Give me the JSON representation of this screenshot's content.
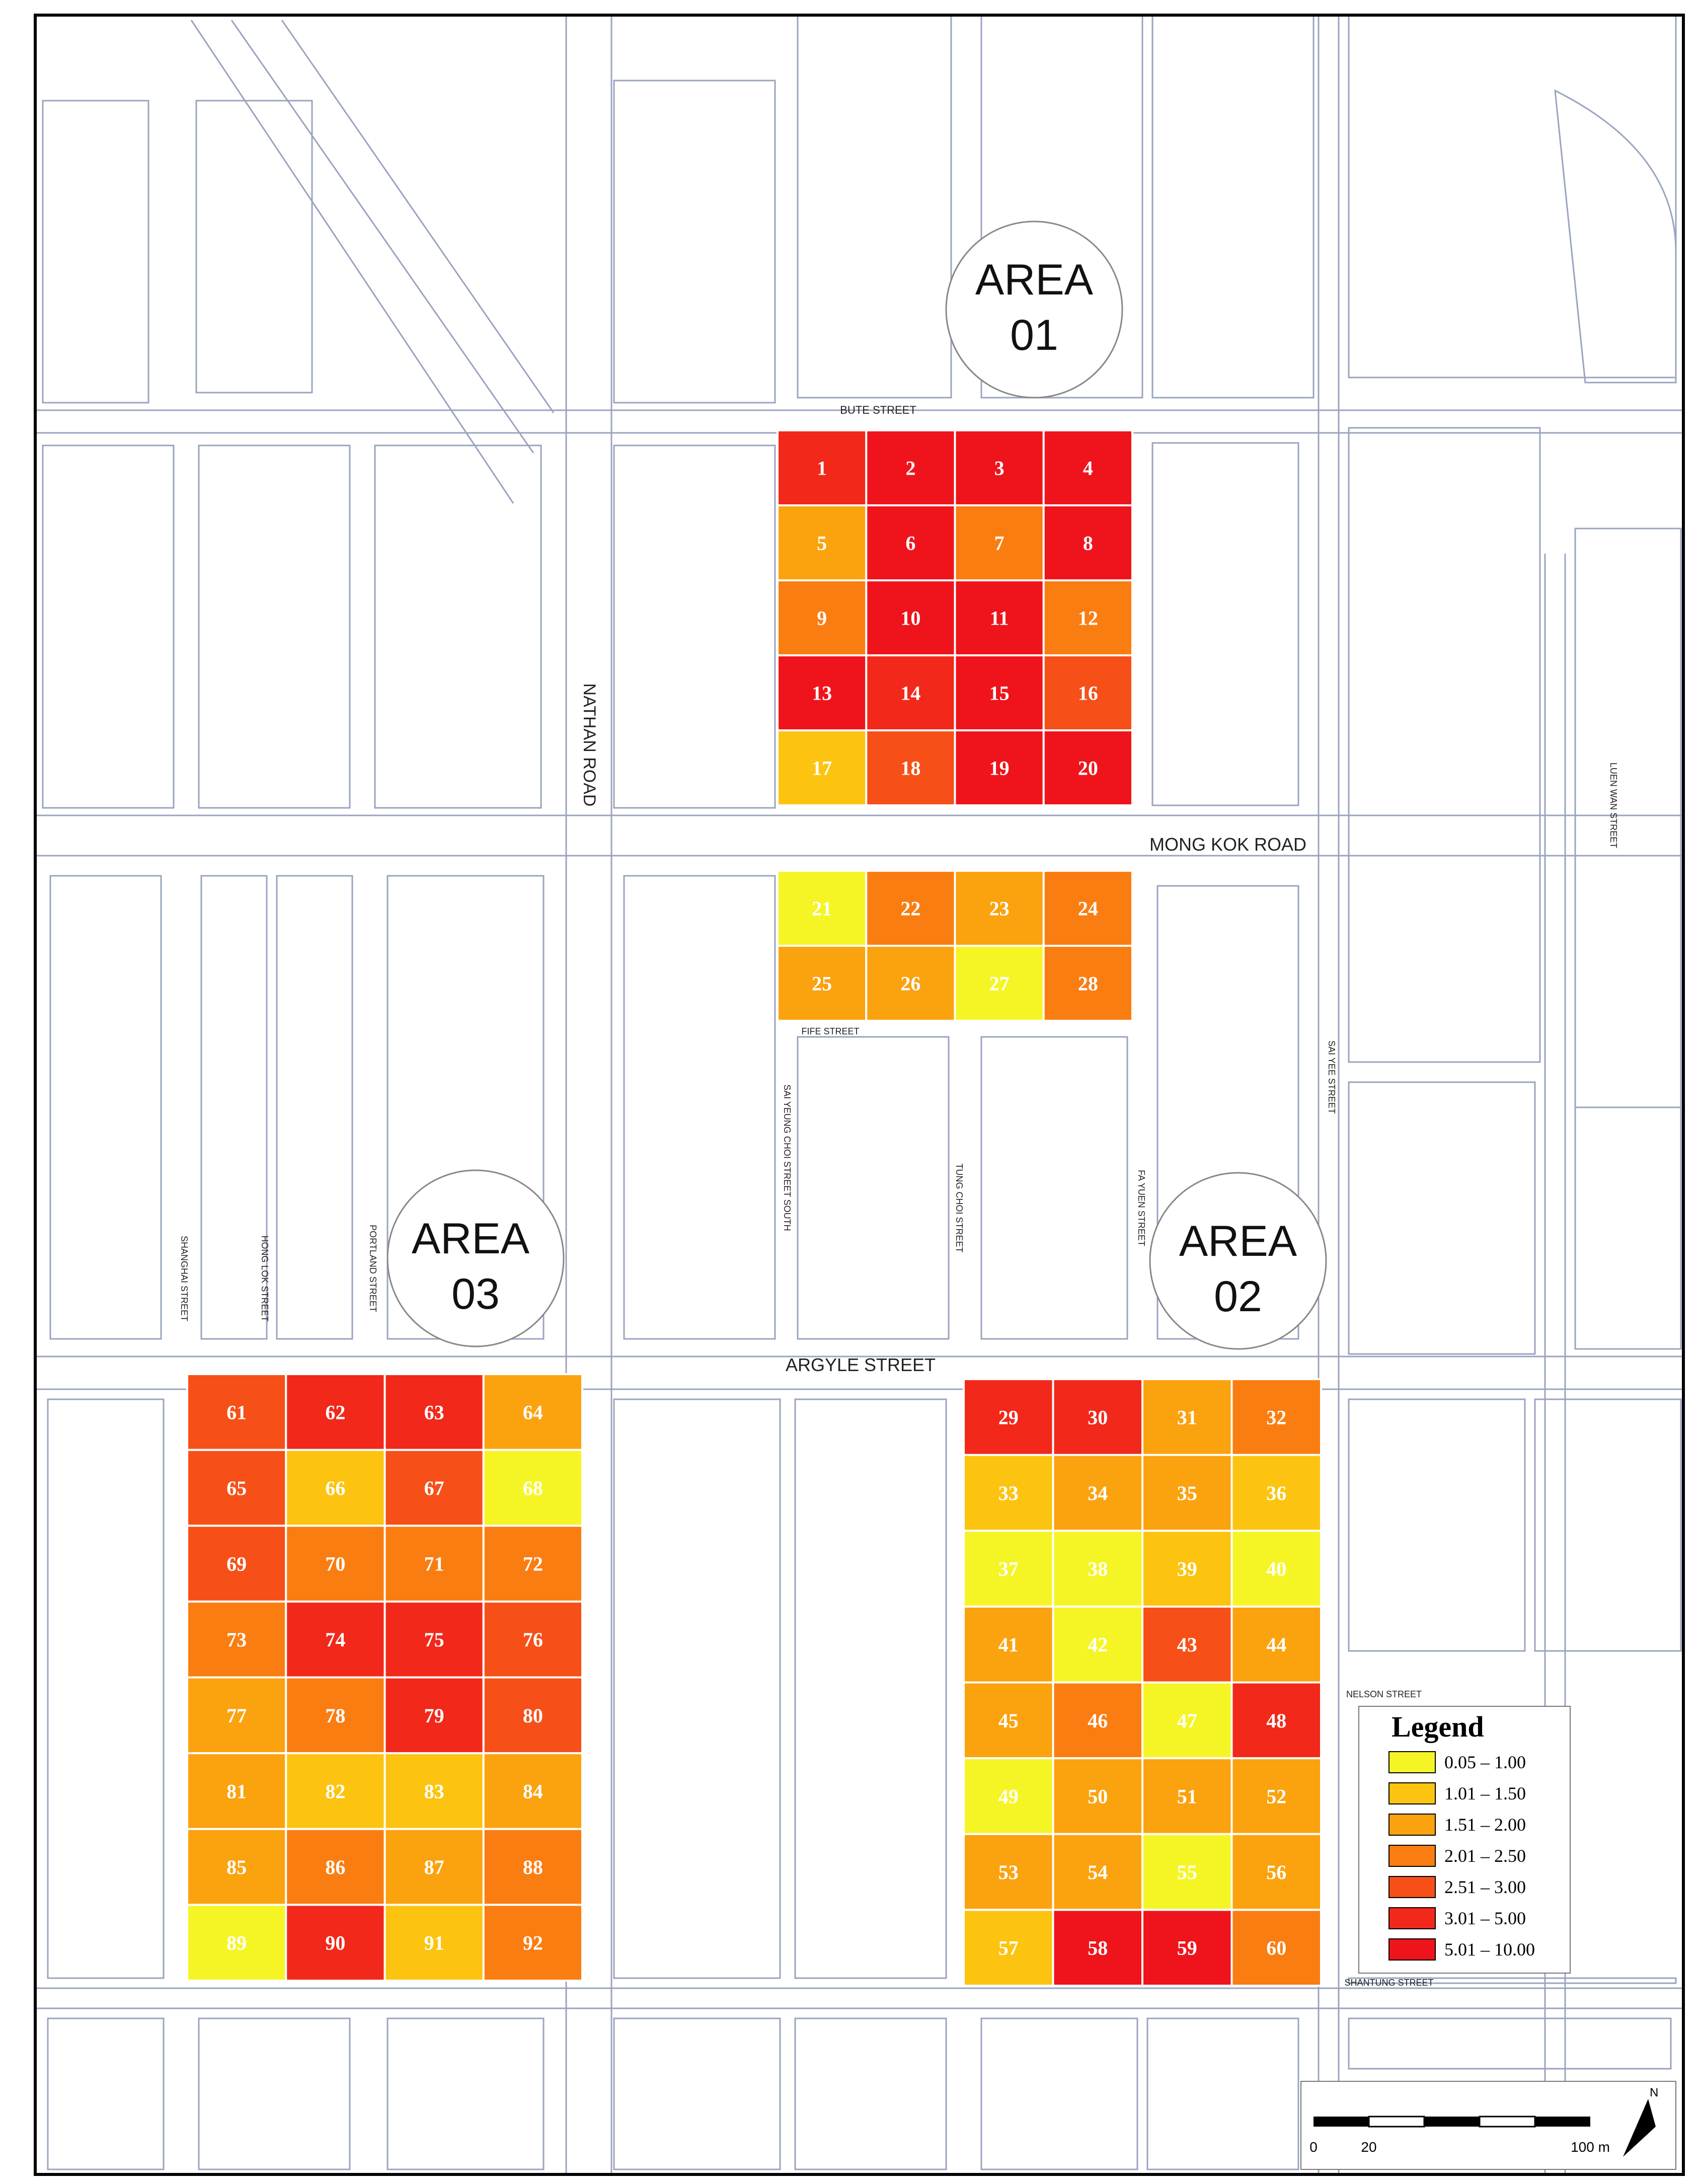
{
  "map": {
    "colors": {
      "background": "#ffffff",
      "building_stroke": "#9aa4c0",
      "frame": "#000000"
    },
    "areas": [
      {
        "label_line1": "AREA",
        "label_line2": "01"
      },
      {
        "label_line1": "AREA",
        "label_line2": "02"
      },
      {
        "label_line1": "AREA",
        "label_line2": "03"
      }
    ],
    "streets": {
      "bute": "BUTE STREET",
      "mong_kok": "MONG KOK ROAD",
      "nathan": "NATHAN ROAD",
      "argyle": "ARGYLE STREET",
      "fife": "FIFE STREET",
      "nelson": "NELSON STREET",
      "shantung": "SHANTUNG STREET",
      "sai_yee": "SAI YEE STREET",
      "fa_yuen": "FA YUEN STREET",
      "tung_choi": "TUNG CHOI STREET",
      "sai_yeung_choi": "SAI YEUNG CHOI STREET SOUTH",
      "portland": "PORTLAND STREET",
      "shanghai": "SHANGHAI STREET",
      "hong_lok": "HONG LOK STREET",
      "luen_wan": "LUEN WAN STREET"
    },
    "legend": {
      "title": "Legend",
      "classes": [
        {
          "label": "0.05 – 1.00",
          "color": "#f5f526"
        },
        {
          "label": "1.01 – 1.50",
          "color": "#fcc410"
        },
        {
          "label": "1.51 – 2.00",
          "color": "#fba20f"
        },
        {
          "label": "2.01 – 2.50",
          "color": "#fa7d12"
        },
        {
          "label": "2.51 – 3.00",
          "color": "#f65018"
        },
        {
          "label": "3.01 – 5.00",
          "color": "#f2281a"
        },
        {
          "label": "5.01 – 10.00",
          "color": "#ef141c"
        }
      ]
    },
    "scale_bar": {
      "labels": [
        "0",
        "20",
        "100 m"
      ],
      "north": "N"
    },
    "grids": [
      {
        "id": "area01-north",
        "cols": 4,
        "rows": 5,
        "numbers": [
          1,
          2,
          3,
          4,
          5,
          6,
          7,
          8,
          9,
          10,
          11,
          12,
          13,
          14,
          15,
          16,
          17,
          18,
          19,
          20
        ],
        "classes": [
          5,
          6,
          6,
          6,
          2,
          6,
          3,
          6,
          3,
          6,
          6,
          3,
          6,
          5,
          6,
          4,
          1,
          4,
          6,
          6
        ]
      },
      {
        "id": "area01-south",
        "cols": 4,
        "rows": 2,
        "numbers": [
          21,
          22,
          23,
          24,
          25,
          26,
          27,
          28
        ],
        "classes": [
          0,
          3,
          2,
          3,
          2,
          2,
          0,
          3
        ]
      },
      {
        "id": "area02",
        "cols": 4,
        "rows": 8,
        "numbers": [
          29,
          30,
          31,
          32,
          33,
          34,
          35,
          36,
          37,
          38,
          39,
          40,
          41,
          42,
          43,
          44,
          45,
          46,
          47,
          48,
          49,
          50,
          51,
          52,
          53,
          54,
          55,
          56,
          57,
          58,
          59,
          60
        ],
        "classes": [
          5,
          5,
          2,
          3,
          1,
          2,
          2,
          1,
          0,
          0,
          1,
          0,
          2,
          0,
          4,
          2,
          2,
          3,
          0,
          5,
          0,
          2,
          2,
          2,
          2,
          2,
          0,
          2,
          1,
          6,
          6,
          3
        ]
      },
      {
        "id": "area03",
        "cols": 4,
        "rows": 8,
        "numbers": [
          61,
          62,
          63,
          64,
          65,
          66,
          67,
          68,
          69,
          70,
          71,
          72,
          73,
          74,
          75,
          76,
          77,
          78,
          79,
          80,
          81,
          82,
          83,
          84,
          85,
          86,
          87,
          88,
          89,
          90,
          91,
          92
        ],
        "classes": [
          4,
          5,
          5,
          2,
          4,
          1,
          4,
          0,
          4,
          3,
          3,
          3,
          3,
          5,
          5,
          4,
          2,
          3,
          5,
          4,
          2,
          1,
          1,
          2,
          2,
          3,
          2,
          3,
          0,
          5,
          1,
          3
        ]
      }
    ]
  }
}
